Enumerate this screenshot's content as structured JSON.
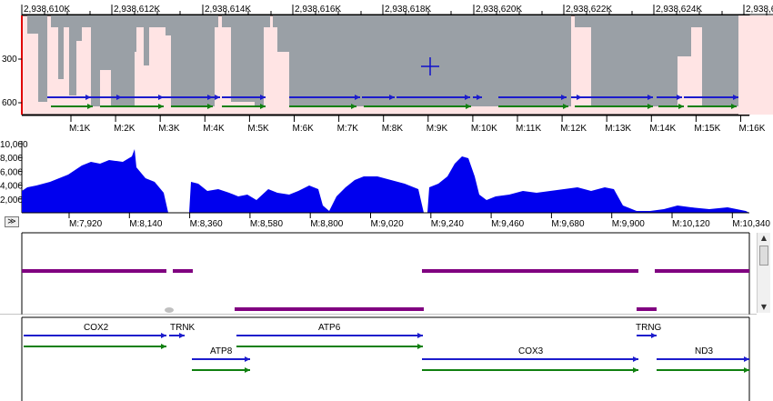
{
  "genome_ruler": {
    "labels": [
      "2,938,610K",
      "2,938,612K",
      "2,938,614K",
      "2,938,616K",
      "2,938,618K",
      "2,938,620K",
      "2,938,622K",
      "2,938,624K",
      "2,938,6"
    ]
  },
  "overview_track": {
    "y_labels": [
      "300",
      "600"
    ],
    "m_labels": [
      "M:1K",
      "M:2K",
      "M:3K",
      "M:4K",
      "M:5K",
      "M:6K",
      "M:7K",
      "M:8K",
      "M:9K",
      "M:10K",
      "M:11K",
      "M:12K",
      "M:13K",
      "M:14K",
      "M:15K",
      "M:16K"
    ]
  },
  "coverage_track": {
    "y_labels": [
      "10,000",
      "8,000",
      "6,000",
      "4,000",
      "2,000"
    ],
    "x_labels": [
      "M:7,920",
      "M:8,140",
      "M:8,360",
      "M:8,580",
      "M:8,800",
      "M:9,020",
      "M:9,240",
      "M:9,460",
      "M:9,680",
      "M:9,900",
      "M:10,120",
      "M:10,340"
    ],
    "colors": {
      "fill": "#0000ee"
    }
  },
  "expand_button": {
    "label": "≫"
  },
  "scrollbar": {
    "up": "▲",
    "down": "▼"
  },
  "gene_track": {
    "genes": [
      {
        "name": "COX2"
      },
      {
        "name": "TRNK"
      },
      {
        "name": "ATP6"
      },
      {
        "name": "ATP8"
      },
      {
        "name": "COX3"
      },
      {
        "name": "TRNG"
      },
      {
        "name": "ND3"
      }
    ],
    "colors": {
      "blue": "#1c1ccc",
      "green": "#108010",
      "purple": "#800080"
    }
  }
}
